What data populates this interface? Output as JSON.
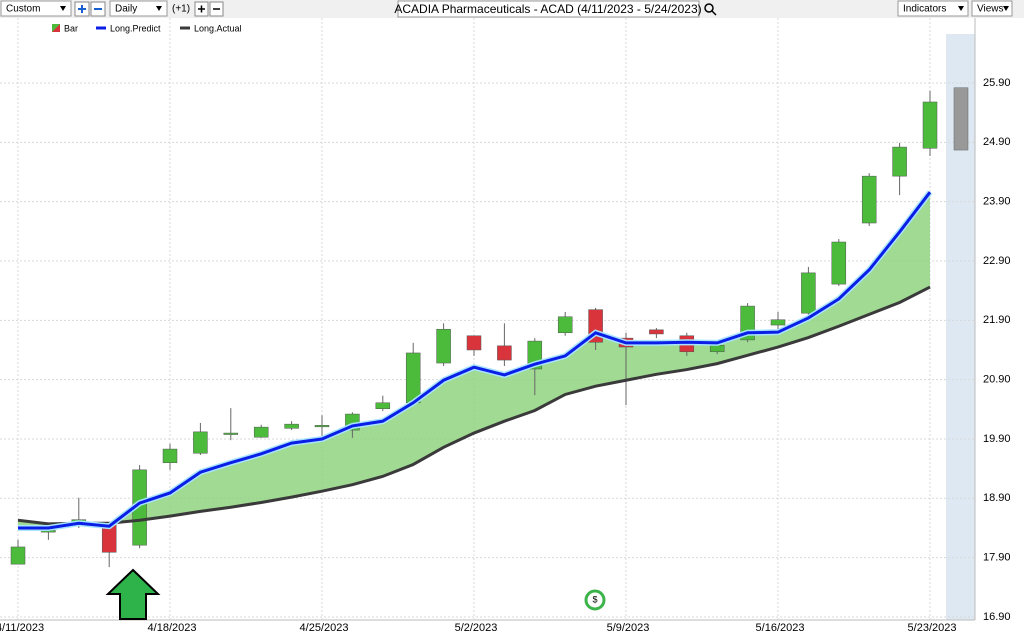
{
  "toolbar": {
    "period": "Custom",
    "interval": "Daily",
    "offset": "(+1)",
    "indicators": "Indicators",
    "views": "Views"
  },
  "chart_data": {
    "type": "candlestick",
    "title": "ACADIA Pharmaceuticals - ACAD (4/11/2023 - 5/24/2023)",
    "categories": [
      "4/11/2023",
      null,
      null,
      null,
      null,
      "4/18/2023",
      null,
      null,
      null,
      null,
      "4/25/2023",
      null,
      null,
      null,
      null,
      "5/2/2023",
      null,
      null,
      null,
      null,
      "5/9/2023",
      null,
      null,
      null,
      null,
      "5/16/2023",
      null,
      null,
      null,
      null,
      "5/23/2023"
    ],
    "bar_name": "Bar",
    "up_color": "#4cbb3c",
    "down_color": "#d9343c",
    "open": [
      17.79,
      18.33,
      18.47,
      18.48,
      18.11,
      19.5,
      19.66,
      19.98,
      19.93,
      20.08,
      20.12,
      20.05,
      20.41,
      20.51,
      21.18,
      21.64,
      21.47,
      21.08,
      21.69,
      22.08,
      21.6,
      21.74,
      21.64,
      21.37,
      21.57,
      21.82,
      22.02,
      22.51,
      23.54,
      24.33,
      24.8
    ],
    "high": [
      18.2,
      18.45,
      18.91,
      18.48,
      19.46,
      19.82,
      20.17,
      20.42,
      20.14,
      20.2,
      20.3,
      20.35,
      20.63,
      21.52,
      21.85,
      21.64,
      21.85,
      21.6,
      22.04,
      22.11,
      21.69,
      21.77,
      21.69,
      21.55,
      22.19,
      22.04,
      22.8,
      23.27,
      24.38,
      24.89,
      25.77
    ],
    "low": [
      17.79,
      18.2,
      18.4,
      17.74,
      18.06,
      19.38,
      19.63,
      19.88,
      19.92,
      20.05,
      19.88,
      19.92,
      20.37,
      20.46,
      21.13,
      21.3,
      21.13,
      20.64,
      21.64,
      21.4,
      20.47,
      21.6,
      21.3,
      21.33,
      21.53,
      21.75,
      21.97,
      22.48,
      23.49,
      24.01,
      24.67
    ],
    "close": [
      18.08,
      18.36,
      18.54,
      17.99,
      19.38,
      19.73,
      20.02,
      20.0,
      20.1,
      20.15,
      20.13,
      20.32,
      20.51,
      21.35,
      21.75,
      21.4,
      21.23,
      21.55,
      21.96,
      21.53,
      21.45,
      21.67,
      21.37,
      21.48,
      22.14,
      21.91,
      22.7,
      23.22,
      24.33,
      24.82,
      25.58
    ],
    "forecast": {
      "low": 24.77,
      "high": 25.82,
      "color": "#999999"
    },
    "series": [
      {
        "name": "Long.Predict",
        "color": "#0a1ee6",
        "values": [
          18.4,
          18.4,
          18.48,
          18.43,
          18.82,
          18.99,
          19.34,
          19.5,
          19.65,
          19.83,
          19.9,
          20.12,
          20.2,
          20.51,
          20.89,
          21.11,
          20.98,
          21.16,
          21.3,
          21.69,
          21.52,
          21.52,
          21.53,
          21.52,
          21.69,
          21.7,
          21.94,
          22.26,
          22.75,
          23.39,
          24.06
        ]
      },
      {
        "name": "Long.Actual",
        "color": "#3a3a3a",
        "values": [
          18.53,
          18.47,
          18.48,
          18.48,
          18.53,
          18.6,
          18.68,
          18.75,
          18.83,
          18.92,
          19.02,
          19.13,
          19.27,
          19.47,
          19.76,
          20.0,
          20.2,
          20.38,
          20.65,
          20.79,
          20.89,
          20.99,
          21.07,
          21.17,
          21.31,
          21.45,
          21.61,
          21.8,
          22.0,
          22.2,
          22.46
        ]
      }
    ],
    "fill_color": "#8fd480",
    "ylim": [
      16.9,
      26.5
    ],
    "yticks": [
      {
        "value": 16.9,
        "label": "16.90"
      },
      {
        "value": 17.9,
        "label": "17.90"
      },
      {
        "value": 18.9,
        "label": "18.90"
      },
      {
        "value": 19.9,
        "label": "19.90"
      },
      {
        "value": 20.9,
        "label": "20.90"
      },
      {
        "value": 21.9,
        "label": "21.90"
      },
      {
        "value": 22.9,
        "label": "22.90"
      },
      {
        "value": 23.9,
        "label": "23.90"
      },
      {
        "value": 24.9,
        "label": "24.90"
      },
      {
        "value": 25.9,
        "label": "25.90"
      }
    ],
    "grid": true
  }
}
